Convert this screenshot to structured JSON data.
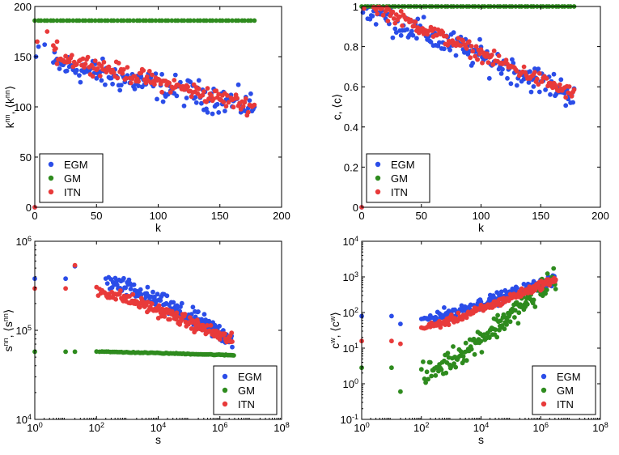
{
  "colors": {
    "EGM": "#2b4de8",
    "GM": "#2e8b1e",
    "ITN": "#e83a3a"
  },
  "chart_data": [
    {
      "id": "a",
      "type": "scatter",
      "scale": "linear",
      "xlabel": "k",
      "ylabel": "k^nn, ⟨k^nn⟩",
      "xlim": [
        0,
        200
      ],
      "ylim": [
        0,
        200
      ],
      "xticks": [
        0,
        50,
        100,
        150,
        200
      ],
      "yticks": [
        0,
        50,
        100,
        150,
        200
      ],
      "xtick_labels": [
        "0",
        "50",
        "100",
        "150",
        "200"
      ],
      "ytick_labels": [
        "0",
        "50",
        "100",
        "150",
        "200"
      ],
      "legend": [
        "EGM",
        "GM",
        "ITN"
      ],
      "legend_position": "bottom-left",
      "series": [
        {
          "name": "EGM",
          "trend": {
            "x0": 15,
            "x1": 178,
            "y0": 143,
            "y1": 100,
            "noise": 12,
            "n": 160
          },
          "extra": [
            [
              0,
              0
            ],
            [
              1,
              150
            ],
            [
              3,
              160
            ],
            [
              8,
              162
            ]
          ]
        },
        {
          "name": "GM",
          "trend": {
            "x0": 0,
            "x1": 178,
            "y0": 186,
            "y1": 186,
            "noise": 0,
            "n": 70
          },
          "extra": []
        },
        {
          "name": "ITN",
          "trend": {
            "x0": 15,
            "x1": 178,
            "y0": 152,
            "y1": 100,
            "noise": 7,
            "n": 160
          },
          "extra": [
            [
              0,
              0
            ],
            [
              2,
              165
            ],
            [
              10,
              175
            ],
            [
              18,
              165
            ]
          ]
        }
      ]
    },
    {
      "id": "b",
      "type": "scatter",
      "scale": "linear",
      "xlabel": "k",
      "ylabel": "c, ⟨c⟩",
      "xlim": [
        0,
        200
      ],
      "ylim": [
        0,
        1
      ],
      "xticks": [
        0,
        50,
        100,
        150,
        200
      ],
      "yticks": [
        0,
        0.2,
        0.4,
        0.6,
        0.8,
        1
      ],
      "xtick_labels": [
        "0",
        "50",
        "100",
        "150",
        "200"
      ],
      "ytick_labels": [
        "0",
        "0.2",
        "0.4",
        "0.6",
        "0.8",
        "1"
      ],
      "legend": [
        "EGM",
        "GM",
        "ITN"
      ],
      "legend_position": "bottom-left",
      "series": [
        {
          "name": "EGM",
          "trend": {
            "x0": 5,
            "x1": 178,
            "y0": 0.98,
            "y1": 0.56,
            "noise": 0.06,
            "n": 170
          },
          "extra": [
            [
              0,
              0
            ],
            [
              1,
              0.97
            ],
            [
              4,
              0.99
            ]
          ]
        },
        {
          "name": "GM",
          "trend": {
            "x0": 0,
            "x1": 178,
            "y0": 1.0,
            "y1": 1.0,
            "noise": 0,
            "n": 70
          },
          "extra": []
        },
        {
          "name": "ITN",
          "trend": {
            "x0": 10,
            "x1": 178,
            "y0": 1.0,
            "y1": 0.56,
            "noise": 0.03,
            "n": 160
          },
          "extra": [
            [
              0,
              0
            ],
            [
              2,
              0.99
            ]
          ]
        }
      ]
    },
    {
      "id": "c",
      "type": "scatter",
      "scale": "loglog",
      "xlabel": "s",
      "ylabel": "s^nn, ⟨s^nn⟩",
      "xlim_log": [
        0,
        8
      ],
      "ylim_log": [
        4,
        6
      ],
      "xticks_log": [
        0,
        2,
        4,
        6,
        8
      ],
      "yticks_log": [
        4,
        5,
        6
      ],
      "xtick_labels": [
        "10^0",
        "10^2",
        "10^4",
        "10^6",
        "10^8"
      ],
      "ytick_labels": [
        "10^4",
        "10^5",
        "10^6"
      ],
      "legend": [
        "EGM",
        "GM",
        "ITN"
      ],
      "legend_position": "bottom-right",
      "series": [
        {
          "name": "EGM",
          "trend": {
            "x0": 2.3,
            "x1": 6.4,
            "y0": 5.55,
            "y1": 4.9,
            "noise": 0.09,
            "n": 170
          },
          "extra": [
            [
              0,
              5.58
            ],
            [
              1.0,
              5.58
            ],
            [
              1.3,
              5.72
            ]
          ]
        },
        {
          "name": "GM",
          "trend": {
            "x0": 2.0,
            "x1": 6.45,
            "y0": 4.76,
            "y1": 4.72,
            "noise": 0.004,
            "n": 90
          },
          "extra": [
            [
              0,
              4.76
            ],
            [
              1.0,
              4.76
            ],
            [
              1.3,
              4.76
            ]
          ]
        },
        {
          "name": "ITN",
          "trend": {
            "x0": 2.0,
            "x1": 6.4,
            "y0": 5.45,
            "y1": 4.88,
            "noise": 0.06,
            "n": 170
          },
          "extra": [
            [
              0,
              5.47
            ],
            [
              1.0,
              5.47
            ],
            [
              1.3,
              5.73
            ]
          ]
        }
      ]
    },
    {
      "id": "d",
      "type": "scatter",
      "scale": "loglog",
      "xlabel": "s",
      "ylabel": "c^w, ⟨c^w⟩",
      "xlim_log": [
        0,
        8
      ],
      "ylim_log": [
        -1,
        4
      ],
      "xticks_log": [
        0,
        2,
        4,
        6,
        8
      ],
      "yticks_log": [
        -1,
        0,
        1,
        2,
        3,
        4
      ],
      "xtick_labels": [
        "10^0",
        "10^2",
        "10^4",
        "10^6",
        "10^8"
      ],
      "ytick_labels": [
        "10^-1",
        "10^0",
        "10^1",
        "10^2",
        "10^3",
        "10^4"
      ],
      "legend": [
        "EGM",
        "GM",
        "ITN"
      ],
      "legend_position": "bottom-right",
      "series": [
        {
          "name": "EGM",
          "trend": {
            "x0": 2.0,
            "x1": 6.5,
            "y0": 1.8,
            "y1": 2.95,
            "noise": 0.14,
            "n": 170
          },
          "extra": [
            [
              0,
              1.9
            ],
            [
              1.0,
              1.9
            ],
            [
              1.3,
              1.68
            ]
          ]
        },
        {
          "name": "GM",
          "trend": {
            "x0": 2.0,
            "x1": 6.5,
            "y0": 0.2,
            "y1": 3.0,
            "noise": 0.28,
            "n": 170
          },
          "extra": [
            [
              0,
              0.45
            ],
            [
              1.0,
              0.45
            ],
            [
              1.3,
              -0.22
            ]
          ]
        },
        {
          "name": "ITN",
          "trend": {
            "x0": 2.0,
            "x1": 6.5,
            "y0": 1.55,
            "y1": 2.95,
            "noise": 0.1,
            "n": 170
          },
          "extra": [
            [
              0,
              1.2
            ],
            [
              1.0,
              1.2
            ],
            [
              1.3,
              1.12
            ]
          ]
        }
      ]
    }
  ]
}
